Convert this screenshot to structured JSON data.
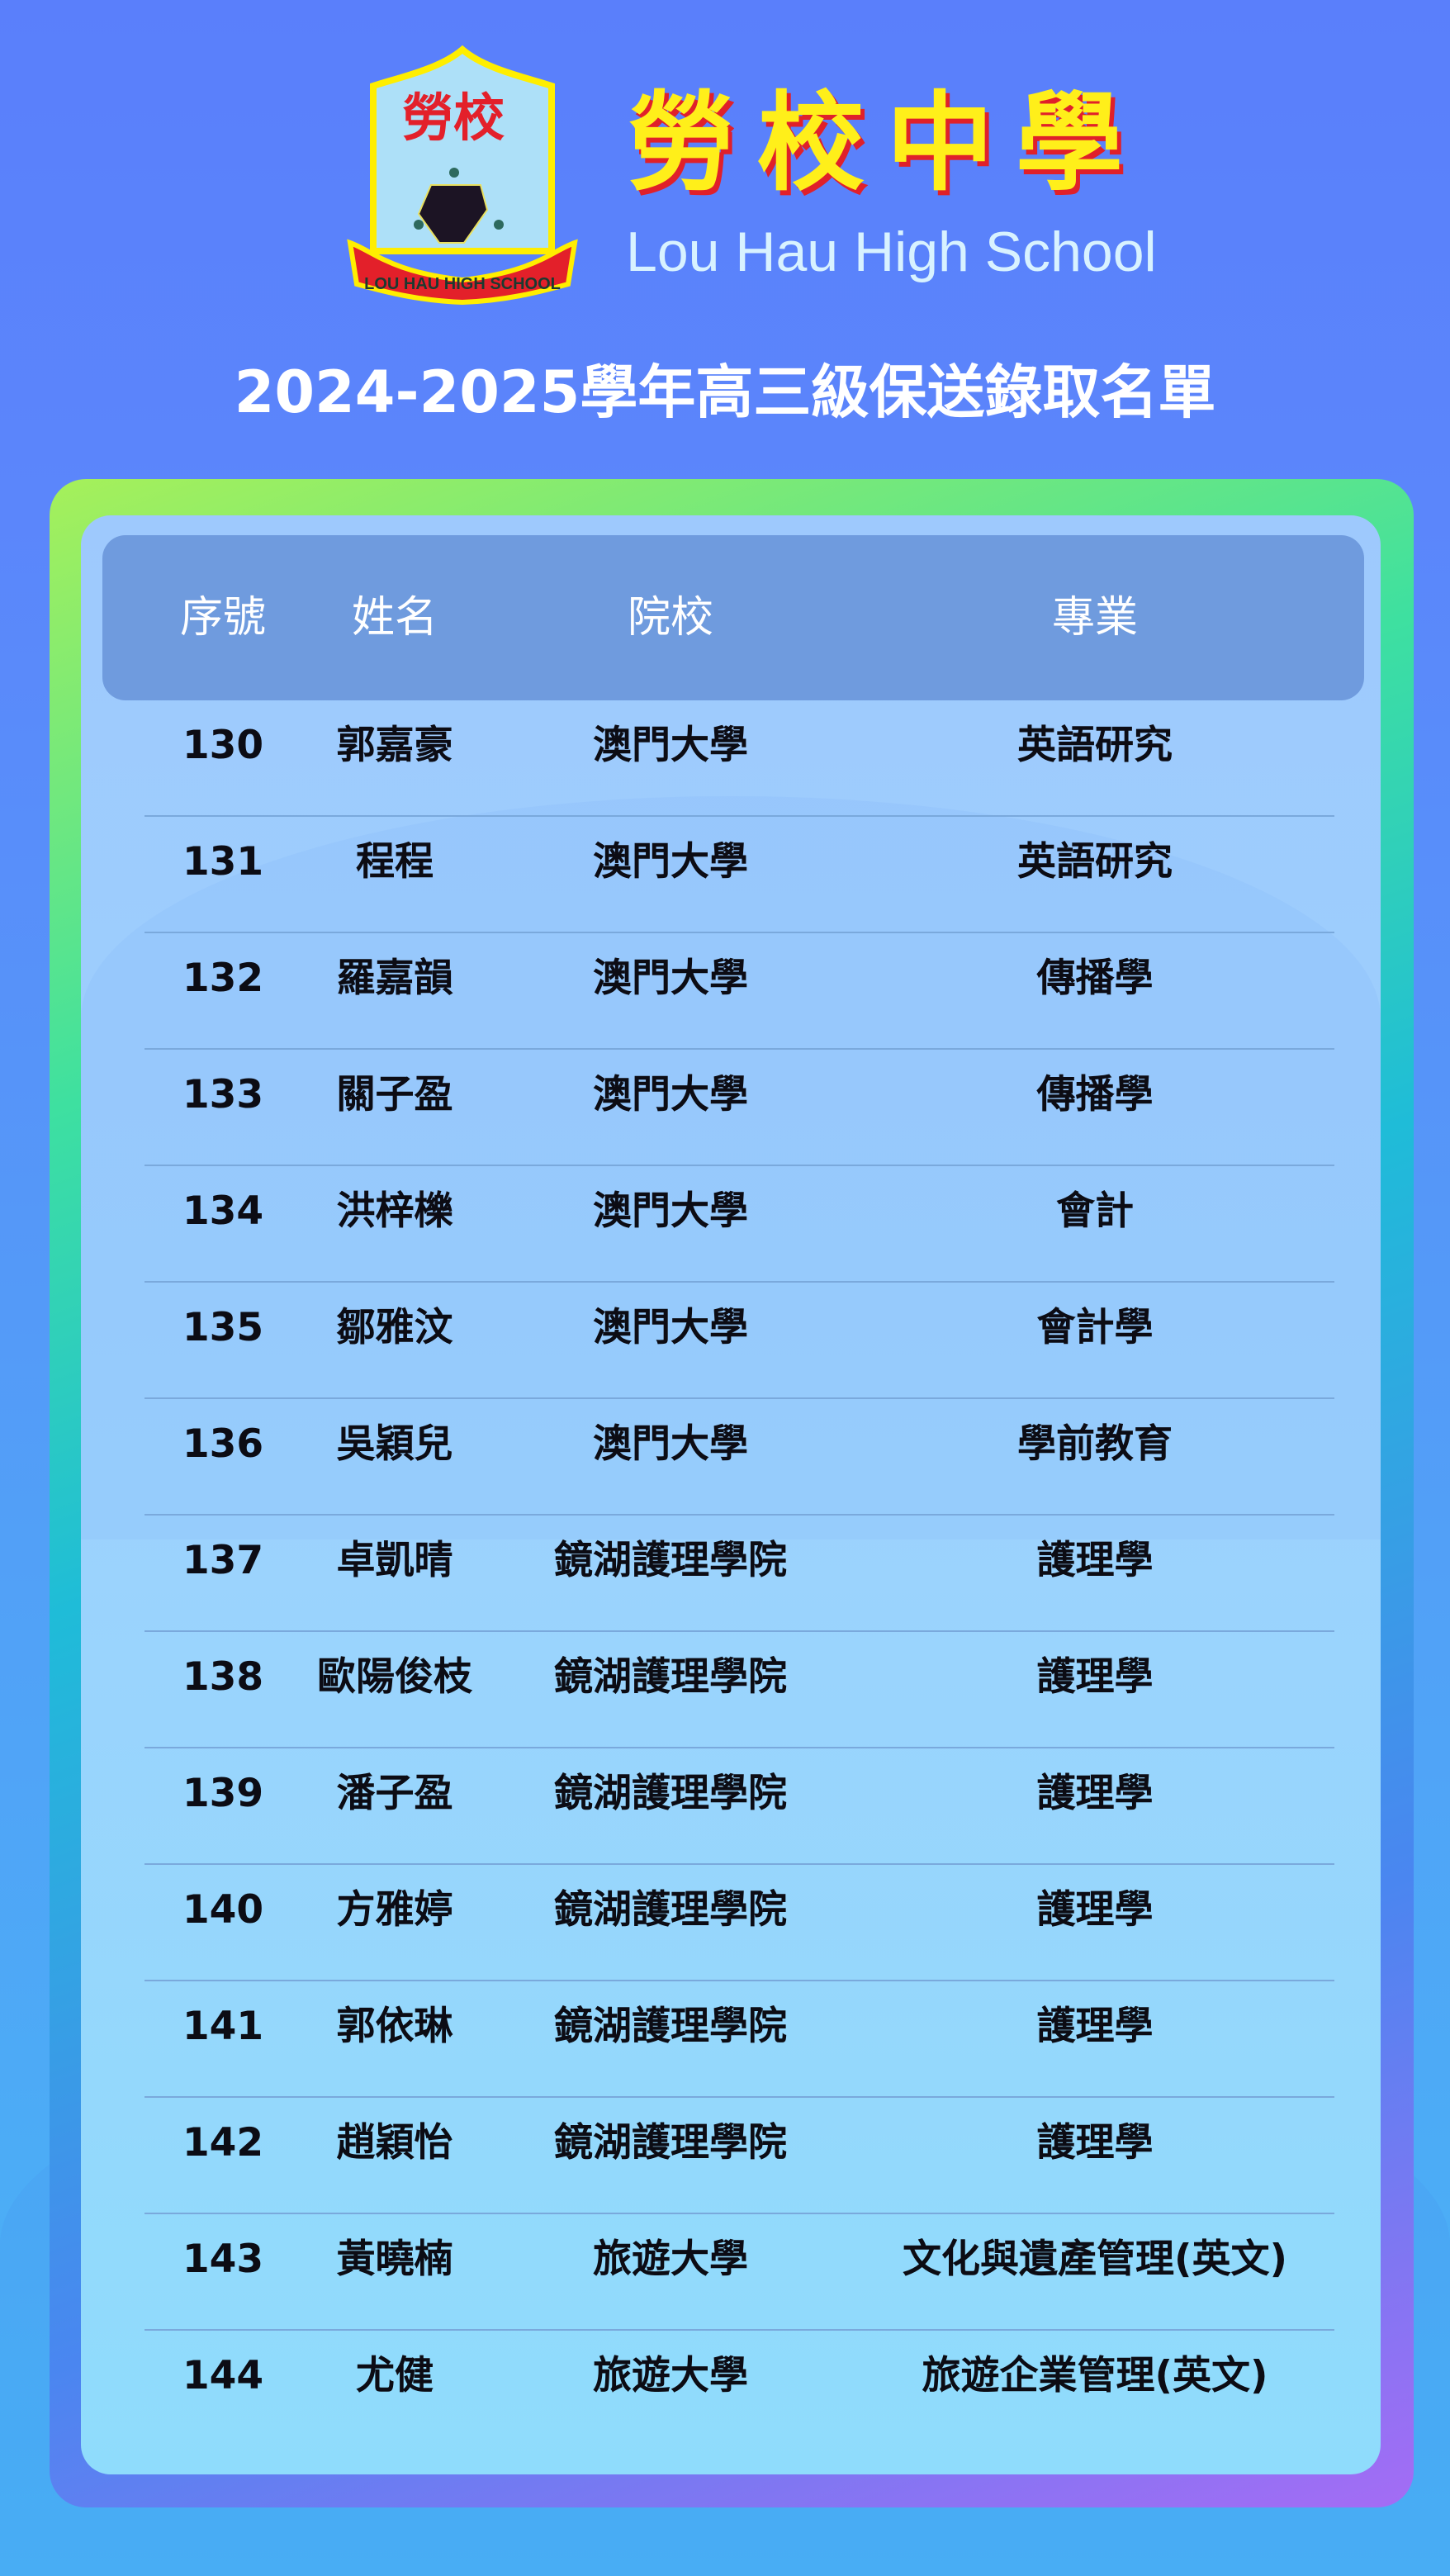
{
  "school": {
    "logo_text_cn": "勞校",
    "logo_ribbon_text": "LOU HAU HIGH SCHOOL",
    "name_cn": [
      "勞",
      "校",
      "中",
      "學"
    ],
    "name_en": "Lou Hau High School"
  },
  "title": "2024-2025學年高三級保送錄取名單",
  "table": {
    "headers": [
      "序號",
      "姓名",
      "院校",
      "專業"
    ],
    "rows": [
      [
        "130",
        "郭嘉豪",
        "澳門大學",
        "英語研究"
      ],
      [
        "131",
        "程程",
        "澳門大學",
        "英語研究"
      ],
      [
        "132",
        "羅嘉韻",
        "澳門大學",
        "傳播學"
      ],
      [
        "133",
        "關子盈",
        "澳門大學",
        "傳播學"
      ],
      [
        "134",
        "洪梓櫟",
        "澳門大學",
        "會計"
      ],
      [
        "135",
        "鄒雅汶",
        "澳門大學",
        "會計學"
      ],
      [
        "136",
        "吳穎兒",
        "澳門大學",
        "學前教育"
      ],
      [
        "137",
        "卓凱晴",
        "鏡湖護理學院",
        "護理學"
      ],
      [
        "138",
        "歐陽俊枝",
        "鏡湖護理學院",
        "護理學"
      ],
      [
        "139",
        "潘子盈",
        "鏡湖護理學院",
        "護理學"
      ],
      [
        "140",
        "方雅婷",
        "鏡湖護理學院",
        "護理學"
      ],
      [
        "141",
        "郭依琳",
        "鏡湖護理學院",
        "護理學"
      ],
      [
        "142",
        "趙穎怡",
        "鏡湖護理學院",
        "護理學"
      ],
      [
        "143",
        "黃曉楠",
        "旅遊大學",
        "文化與遺產管理(英文)"
      ],
      [
        "144",
        "尤健",
        "旅遊大學",
        "旅遊企業管理(英文)"
      ]
    ]
  },
  "colors": {
    "header_bar": "#6f9bde",
    "name_cn": "#ffef1a",
    "name_cn_shadow": "#e0202a",
    "logo_ribbon": "#e3202a"
  }
}
